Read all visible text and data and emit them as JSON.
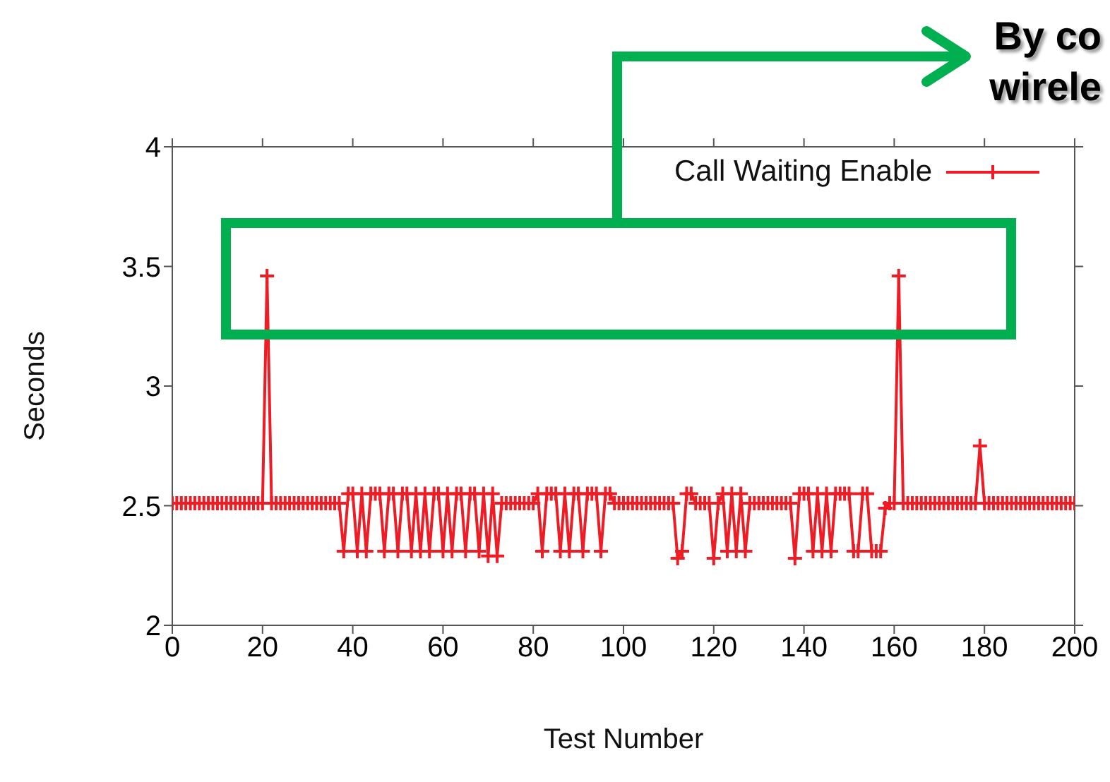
{
  "chart_data": {
    "type": "line",
    "xlabel": "Test Number",
    "ylabel": "Seconds",
    "annotations": [
      "By co",
      "wirele"
    ],
    "x": [
      0,
      1,
      2,
      3,
      4,
      5,
      6,
      7,
      8,
      9,
      10,
      11,
      12,
      13,
      14,
      15,
      16,
      17,
      18,
      19,
      20,
      21,
      22,
      23,
      24,
      25,
      26,
      27,
      28,
      29,
      30,
      31,
      32,
      33,
      34,
      35,
      36,
      37,
      38,
      39,
      40,
      41,
      42,
      43,
      44,
      45,
      46,
      47,
      48,
      49,
      50,
      51,
      52,
      53,
      54,
      55,
      56,
      57,
      58,
      59,
      60,
      61,
      62,
      63,
      64,
      65,
      66,
      67,
      68,
      69,
      70,
      71,
      72,
      73,
      74,
      75,
      76,
      77,
      78,
      79,
      80,
      81,
      82,
      83,
      84,
      85,
      86,
      87,
      88,
      89,
      90,
      91,
      92,
      93,
      94,
      95,
      96,
      97,
      98,
      99,
      100,
      101,
      102,
      103,
      104,
      105,
      106,
      107,
      108,
      109,
      110,
      111,
      112,
      113,
      114,
      115,
      116,
      117,
      118,
      119,
      120,
      121,
      122,
      123,
      124,
      125,
      126,
      127,
      128,
      129,
      130,
      131,
      132,
      133,
      134,
      135,
      136,
      137,
      138,
      139,
      140,
      141,
      142,
      143,
      144,
      145,
      146,
      147,
      148,
      149,
      150,
      151,
      152,
      153,
      154,
      155,
      156,
      157,
      158,
      159,
      160,
      161,
      162,
      163,
      164,
      165,
      166,
      167,
      168,
      169,
      170,
      171,
      172,
      173,
      174,
      175,
      176,
      177,
      178,
      179,
      180,
      181,
      182,
      183,
      184,
      185,
      186,
      187,
      188,
      189,
      190,
      191,
      192,
      193,
      194,
      195,
      196,
      197,
      198,
      199,
      200
    ],
    "series": [
      {
        "name": "Call Waiting Enable",
        "color": "#ee1c25",
        "values": [
          2.51,
          2.51,
          2.51,
          2.51,
          2.51,
          2.51,
          2.51,
          2.51,
          2.51,
          2.51,
          2.51,
          2.51,
          2.51,
          2.51,
          2.51,
          2.51,
          2.51,
          2.51,
          2.51,
          2.51,
          2.51,
          3.46,
          2.51,
          2.51,
          2.51,
          2.51,
          2.51,
          2.51,
          2.51,
          2.51,
          2.51,
          2.51,
          2.51,
          2.51,
          2.51,
          2.51,
          2.51,
          2.51,
          2.31,
          2.55,
          2.55,
          2.31,
          2.55,
          2.31,
          2.55,
          2.55,
          2.55,
          2.31,
          2.55,
          2.55,
          2.31,
          2.55,
          2.55,
          2.31,
          2.55,
          2.31,
          2.55,
          2.31,
          2.55,
          2.55,
          2.31,
          2.55,
          2.31,
          2.55,
          2.55,
          2.31,
          2.55,
          2.55,
          2.31,
          2.55,
          2.29,
          2.55,
          2.29,
          2.51,
          2.51,
          2.51,
          2.51,
          2.51,
          2.51,
          2.51,
          2.51,
          2.55,
          2.31,
          2.55,
          2.55,
          2.55,
          2.31,
          2.55,
          2.31,
          2.55,
          2.55,
          2.31,
          2.55,
          2.55,
          2.55,
          2.31,
          2.55,
          2.55,
          2.51,
          2.51,
          2.51,
          2.51,
          2.51,
          2.51,
          2.51,
          2.51,
          2.51,
          2.51,
          2.51,
          2.51,
          2.51,
          2.51,
          2.28,
          2.31,
          2.55,
          2.55,
          2.51,
          2.51,
          2.51,
          2.51,
          2.28,
          2.51,
          2.55,
          2.31,
          2.55,
          2.31,
          2.55,
          2.31,
          2.51,
          2.51,
          2.51,
          2.51,
          2.51,
          2.51,
          2.51,
          2.51,
          2.51,
          2.51,
          2.28,
          2.55,
          2.55,
          2.55,
          2.31,
          2.55,
          2.31,
          2.55,
          2.31,
          2.55,
          2.55,
          2.55,
          2.55,
          2.31,
          2.31,
          2.55,
          2.55,
          2.31,
          2.31,
          2.31,
          2.49,
          2.51,
          2.51,
          3.46,
          2.51,
          2.51,
          2.51,
          2.51,
          2.51,
          2.51,
          2.51,
          2.51,
          2.51,
          2.51,
          2.51,
          2.51,
          2.51,
          2.51,
          2.51,
          2.51,
          2.51,
          2.75,
          2.51,
          2.51,
          2.51,
          2.51,
          2.51,
          2.51,
          2.51,
          2.51,
          2.51,
          2.51,
          2.51,
          2.51,
          2.51,
          2.51,
          2.51,
          2.51,
          2.51,
          2.51,
          2.51,
          2.51,
          2.51
        ]
      }
    ],
    "xlim": [
      0,
      200
    ],
    "xticks": [
      0,
      20,
      40,
      60,
      80,
      100,
      120,
      140,
      160,
      180,
      200
    ],
    "ylim": [
      2,
      4
    ],
    "yticks": [
      2,
      2.5,
      3,
      3.5,
      4
    ],
    "legend": "top right",
    "marker": "cross",
    "line_style": "solid"
  }
}
